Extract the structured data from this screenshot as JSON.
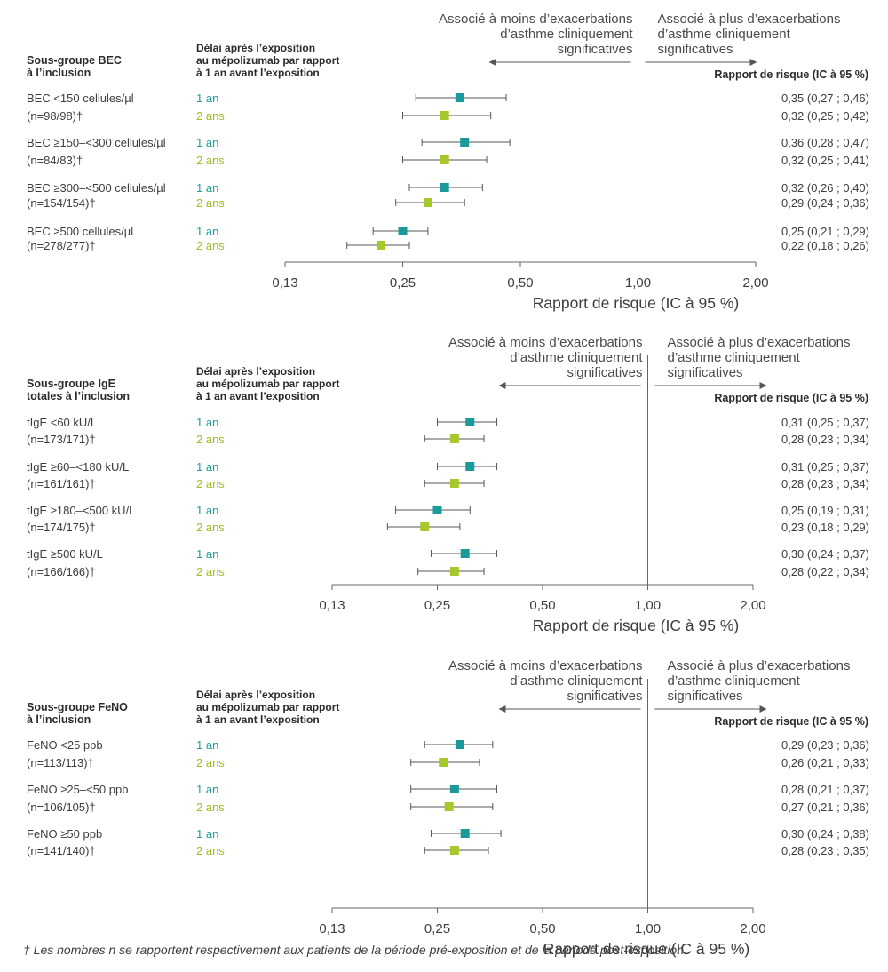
{
  "colors": {
    "one_year": "#1a9a9a",
    "two_years": "#a6c82a",
    "axis": "#666666",
    "text": "#3d3d3d"
  },
  "footnote": "† Les nombres n se rapportent respectivement aux patients de la période pré-exposition et de la période post-exposition.",
  "chart_data": [
    {
      "type": "forest",
      "subgroup_header": [
        "Sous-groupe BEC",
        "à l’inclusion"
      ],
      "time_header": [
        "Délai après l’exposition",
        "au mépolizumab par rapport",
        "à 1 an avant l’exposition"
      ],
      "rr_header": "Rapport de risque (IC à 95 %)",
      "left_direction": [
        "Associé à moins d’exacerbations",
        "d’asthme cliniquement",
        "significatives"
      ],
      "right_direction": [
        "Associé à plus d’exacerbations",
        "d’asthme cliniquement",
        "significatives"
      ],
      "xlabel": "Rapport de risque (IC à 95 %)",
      "x_scale": "log2",
      "xlim": [
        0.125,
        2.0
      ],
      "x_ticks": [
        0.125,
        0.25,
        0.5,
        1.0,
        2.0
      ],
      "x_tick_labels": [
        "0,13",
        "0,25",
        "0,50",
        "1,00",
        "2,00"
      ],
      "reference_line": 1.0,
      "groups": [
        {
          "label": "BEC <150 cellules/µl",
          "n": "(n=98/98)†",
          "rows": [
            {
              "time": "1 an",
              "hr": 0.35,
              "lo": 0.27,
              "hi": 0.46,
              "text": "0,35 (0,27 ; 0,46)"
            },
            {
              "time": "2 ans",
              "hr": 0.32,
              "lo": 0.25,
              "hi": 0.42,
              "text": "0,32 (0,25 ; 0,42)"
            }
          ]
        },
        {
          "label": "BEC ≥150–<300 cellules/µl",
          "n": "(n=84/83)†",
          "rows": [
            {
              "time": "1 an",
              "hr": 0.36,
              "lo": 0.28,
              "hi": 0.47,
              "text": "0,36 (0,28 ; 0,47)"
            },
            {
              "time": "2 ans",
              "hr": 0.32,
              "lo": 0.25,
              "hi": 0.41,
              "text": "0,32 (0,25 ; 0,41)"
            }
          ]
        },
        {
          "label": "BEC ≥300–<500 cellules/µl",
          "n": "(n=154/154)†",
          "rows": [
            {
              "time": "1 an",
              "hr": 0.32,
              "lo": 0.26,
              "hi": 0.4,
              "text": "0,32 (0,26 ; 0,40)"
            },
            {
              "time": "2 ans",
              "hr": 0.29,
              "lo": 0.24,
              "hi": 0.36,
              "text": "0,29 (0,24 ; 0,36)"
            }
          ]
        },
        {
          "label": "BEC ≥500 cellules/µl",
          "n": "(n=278/277)†",
          "rows": [
            {
              "time": "1 an",
              "hr": 0.25,
              "lo": 0.21,
              "hi": 0.29,
              "text": "0,25 (0,21 ; 0,29)"
            },
            {
              "time": "2 ans",
              "hr": 0.22,
              "lo": 0.18,
              "hi": 0.26,
              "text": "0,22 (0,18 ; 0,26)"
            }
          ]
        }
      ]
    },
    {
      "type": "forest",
      "subgroup_header": [
        "Sous-groupe IgE",
        "totales à l’inclusion"
      ],
      "time_header": [
        "Délai après l’exposition",
        "au mépolizumab par rapport",
        "à 1 an avant l’exposition"
      ],
      "rr_header": "Rapport de risque (IC à 95 %)",
      "left_direction": [
        "Associé à moins d’exacerbations",
        "d’asthme cliniquement",
        "significatives"
      ],
      "right_direction": [
        "Associé à plus d’exacerbations",
        "d’asthme cliniquement",
        "significatives"
      ],
      "xlabel": "Rapport de risque (IC à 95 %)",
      "x_scale": "log2",
      "xlim": [
        0.125,
        2.0
      ],
      "x_ticks": [
        0.125,
        0.25,
        0.5,
        1.0,
        2.0
      ],
      "x_tick_labels": [
        "0,13",
        "0,25",
        "0,50",
        "1,00",
        "2,00"
      ],
      "reference_line": 1.0,
      "groups": [
        {
          "label": "tIgE <60 kU/L",
          "n": "(n=173/171)†",
          "rows": [
            {
              "time": "1 an",
              "hr": 0.31,
              "lo": 0.25,
              "hi": 0.37,
              "text": "0,31 (0,25 ; 0,37)"
            },
            {
              "time": "2 ans",
              "hr": 0.28,
              "lo": 0.23,
              "hi": 0.34,
              "text": "0,28 (0,23 ; 0,34)"
            }
          ]
        },
        {
          "label": "tIgE ≥60–<180 kU/L",
          "n": "(n=161/161)†",
          "rows": [
            {
              "time": "1 an",
              "hr": 0.31,
              "lo": 0.25,
              "hi": 0.37,
              "text": "0,31 (0,25 ; 0,37)"
            },
            {
              "time": "2 ans",
              "hr": 0.28,
              "lo": 0.23,
              "hi": 0.34,
              "text": "0,28 (0,23 ; 0,34)"
            }
          ]
        },
        {
          "label": "tIgE ≥180–<500 kU/L",
          "n": "(n=174/175)†",
          "rows": [
            {
              "time": "1 an",
              "hr": 0.25,
              "lo": 0.19,
              "hi": 0.31,
              "text": "0,25 (0,19 ; 0,31)"
            },
            {
              "time": "2 ans",
              "hr": 0.23,
              "lo": 0.18,
              "hi": 0.29,
              "text": "0,23 (0,18 ; 0,29)"
            }
          ]
        },
        {
          "label": "tIgE ≥500 kU/L",
          "n": "(n=166/166)†",
          "rows": [
            {
              "time": "1 an",
              "hr": 0.3,
              "lo": 0.24,
              "hi": 0.37,
              "text": "0,30 (0,24 ; 0,37)"
            },
            {
              "time": "2 ans",
              "hr": 0.28,
              "lo": 0.22,
              "hi": 0.34,
              "text": "0,28 (0,22 ; 0,34)"
            }
          ]
        }
      ]
    },
    {
      "type": "forest",
      "subgroup_header": [
        "Sous-groupe FeNO",
        "à l’inclusion"
      ],
      "time_header": [
        "Délai après l’exposition",
        "au mépolizumab par rapport",
        "à 1 an avant l’exposition"
      ],
      "rr_header": "Rapport de risque (IC à 95 %)",
      "left_direction": [
        "Associé à moins d’exacerbations",
        "d’asthme cliniquement",
        "significatives"
      ],
      "right_direction": [
        "Associé à plus d’exacerbations",
        "d’asthme cliniquement",
        "significatives"
      ],
      "xlabel": "Rapport de risque (IC à 95 %)",
      "x_scale": "log2",
      "xlim": [
        0.125,
        2.0
      ],
      "x_ticks": [
        0.125,
        0.25,
        0.5,
        1.0,
        2.0
      ],
      "x_tick_labels": [
        "0,13",
        "0,25",
        "0,50",
        "1,00",
        "2,00"
      ],
      "reference_line": 1.0,
      "groups": [
        {
          "label": "FeNO <25 ppb",
          "n": "(n=113/113)†",
          "rows": [
            {
              "time": "1 an",
              "hr": 0.29,
              "lo": 0.23,
              "hi": 0.36,
              "text": "0,29 (0,23 ; 0,36)"
            },
            {
              "time": "2 ans",
              "hr": 0.26,
              "lo": 0.21,
              "hi": 0.33,
              "text": "0,26 (0,21 ; 0,33)"
            }
          ]
        },
        {
          "label": "FeNO ≥25–<50 ppb",
          "n": "(n=106/105)†",
          "rows": [
            {
              "time": "1 an",
              "hr": 0.28,
              "lo": 0.21,
              "hi": 0.37,
              "text": "0,28 (0,21 ; 0,37)"
            },
            {
              "time": "2 ans",
              "hr": 0.27,
              "lo": 0.21,
              "hi": 0.36,
              "text": "0,27 (0,21 ; 0,36)"
            }
          ]
        },
        {
          "label": "FeNO ≥50 ppb",
          "n": "(n=141/140)†",
          "rows": [
            {
              "time": "1 an",
              "hr": 0.3,
              "lo": 0.24,
              "hi": 0.38,
              "text": "0,30 (0,24 ; 0,38)"
            },
            {
              "time": "2 ans",
              "hr": 0.28,
              "lo": 0.23,
              "hi": 0.35,
              "text": "0,28 (0,23 ; 0,35)"
            }
          ]
        }
      ]
    }
  ]
}
